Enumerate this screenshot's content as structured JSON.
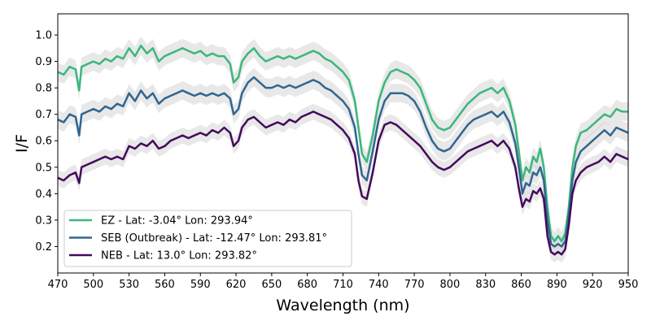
{
  "chart_data": {
    "type": "line",
    "title": "",
    "xlabel": "Wavelength (nm)",
    "ylabel": "I/F",
    "xlim": [
      470,
      950
    ],
    "ylim": [
      0.1,
      1.08
    ],
    "xticks": [
      470,
      500,
      530,
      560,
      590,
      620,
      650,
      680,
      710,
      740,
      770,
      800,
      830,
      860,
      890,
      920,
      950
    ],
    "xtick_labels": [
      "470",
      "500",
      "530",
      "560",
      "590",
      "620",
      "650",
      "680",
      "710",
      "740",
      "770",
      "800",
      "830",
      "860",
      "890",
      "920",
      "950"
    ],
    "yticks": [
      0.2,
      0.3,
      0.4,
      0.5,
      0.6,
      0.7,
      0.8,
      0.9,
      1.0
    ],
    "ytick_labels": [
      "0.2",
      "0.3",
      "0.4",
      "0.5",
      "0.6",
      "0.7",
      "0.8",
      "0.9",
      "1.0"
    ],
    "legend_position": "lower-left",
    "band_color": "#d9d9d9",
    "x": [
      470,
      475,
      480,
      485,
      488,
      490,
      495,
      500,
      505,
      510,
      515,
      520,
      525,
      530,
      535,
      540,
      545,
      550,
      555,
      560,
      565,
      570,
      575,
      580,
      585,
      590,
      595,
      600,
      605,
      610,
      615,
      618,
      622,
      625,
      630,
      635,
      640,
      645,
      650,
      655,
      660,
      665,
      670,
      675,
      680,
      685,
      690,
      695,
      700,
      705,
      710,
      715,
      720,
      723,
      726,
      730,
      735,
      740,
      745,
      750,
      755,
      760,
      765,
      770,
      775,
      780,
      785,
      790,
      795,
      800,
      805,
      810,
      815,
      820,
      825,
      830,
      835,
      840,
      845,
      850,
      855,
      858,
      861,
      864,
      867,
      870,
      873,
      876,
      879,
      882,
      885,
      888,
      891,
      894,
      897,
      900,
      903,
      906,
      910,
      915,
      920,
      925,
      930,
      935,
      940,
      945,
      950
    ],
    "series": [
      {
        "name": "EZ - Lat: -3.04° Lon: 293.94°",
        "color": "#3bb77c",
        "band": 0.035,
        "values": [
          0.86,
          0.85,
          0.88,
          0.87,
          0.79,
          0.88,
          0.89,
          0.9,
          0.89,
          0.91,
          0.9,
          0.92,
          0.91,
          0.95,
          0.92,
          0.96,
          0.93,
          0.95,
          0.9,
          0.92,
          0.93,
          0.94,
          0.95,
          0.94,
          0.93,
          0.94,
          0.92,
          0.93,
          0.92,
          0.92,
          0.89,
          0.82,
          0.84,
          0.9,
          0.93,
          0.95,
          0.92,
          0.9,
          0.91,
          0.92,
          0.91,
          0.92,
          0.91,
          0.92,
          0.93,
          0.94,
          0.93,
          0.91,
          0.9,
          0.88,
          0.86,
          0.83,
          0.75,
          0.65,
          0.55,
          0.52,
          0.62,
          0.75,
          0.82,
          0.86,
          0.87,
          0.86,
          0.85,
          0.83,
          0.8,
          0.74,
          0.68,
          0.65,
          0.64,
          0.65,
          0.68,
          0.71,
          0.74,
          0.76,
          0.78,
          0.79,
          0.8,
          0.78,
          0.8,
          0.75,
          0.66,
          0.56,
          0.45,
          0.5,
          0.48,
          0.54,
          0.52,
          0.57,
          0.5,
          0.35,
          0.24,
          0.22,
          0.24,
          0.22,
          0.25,
          0.35,
          0.5,
          0.58,
          0.63,
          0.64,
          0.66,
          0.68,
          0.7,
          0.69,
          0.72,
          0.71,
          0.71
        ]
      },
      {
        "name": "SEB (Outbreak) - Lat: -12.47° Lon: 293.81°",
        "color": "#30668f",
        "band": 0.035,
        "values": [
          0.68,
          0.67,
          0.7,
          0.69,
          0.62,
          0.7,
          0.71,
          0.72,
          0.71,
          0.73,
          0.72,
          0.74,
          0.73,
          0.78,
          0.75,
          0.79,
          0.76,
          0.78,
          0.74,
          0.76,
          0.77,
          0.78,
          0.79,
          0.78,
          0.77,
          0.78,
          0.77,
          0.78,
          0.77,
          0.78,
          0.76,
          0.7,
          0.72,
          0.78,
          0.82,
          0.84,
          0.82,
          0.8,
          0.8,
          0.81,
          0.8,
          0.81,
          0.8,
          0.81,
          0.82,
          0.83,
          0.82,
          0.8,
          0.79,
          0.77,
          0.75,
          0.72,
          0.65,
          0.55,
          0.47,
          0.45,
          0.56,
          0.68,
          0.75,
          0.78,
          0.78,
          0.78,
          0.77,
          0.75,
          0.71,
          0.65,
          0.6,
          0.57,
          0.56,
          0.57,
          0.6,
          0.63,
          0.66,
          0.68,
          0.69,
          0.7,
          0.71,
          0.69,
          0.71,
          0.67,
          0.59,
          0.5,
          0.4,
          0.44,
          0.43,
          0.48,
          0.47,
          0.5,
          0.45,
          0.3,
          0.21,
          0.2,
          0.21,
          0.2,
          0.22,
          0.32,
          0.45,
          0.52,
          0.56,
          0.58,
          0.6,
          0.62,
          0.64,
          0.62,
          0.65,
          0.64,
          0.63
        ]
      },
      {
        "name": "NEB - Lat: 13.0° Lon: 293.82°",
        "color": "#440a5c",
        "band": 0.03,
        "values": [
          0.46,
          0.45,
          0.47,
          0.48,
          0.44,
          0.5,
          0.51,
          0.52,
          0.53,
          0.54,
          0.53,
          0.54,
          0.53,
          0.58,
          0.57,
          0.59,
          0.58,
          0.6,
          0.57,
          0.58,
          0.6,
          0.61,
          0.62,
          0.61,
          0.62,
          0.63,
          0.62,
          0.64,
          0.63,
          0.65,
          0.63,
          0.58,
          0.6,
          0.65,
          0.68,
          0.69,
          0.67,
          0.65,
          0.66,
          0.67,
          0.66,
          0.68,
          0.67,
          0.69,
          0.7,
          0.71,
          0.7,
          0.69,
          0.68,
          0.66,
          0.64,
          0.61,
          0.55,
          0.45,
          0.39,
          0.38,
          0.48,
          0.6,
          0.66,
          0.67,
          0.66,
          0.64,
          0.62,
          0.6,
          0.58,
          0.55,
          0.52,
          0.5,
          0.49,
          0.5,
          0.52,
          0.54,
          0.56,
          0.57,
          0.58,
          0.59,
          0.6,
          0.58,
          0.6,
          0.57,
          0.5,
          0.42,
          0.35,
          0.38,
          0.37,
          0.41,
          0.4,
          0.42,
          0.38,
          0.24,
          0.18,
          0.17,
          0.18,
          0.17,
          0.19,
          0.28,
          0.4,
          0.45,
          0.48,
          0.5,
          0.51,
          0.52,
          0.54,
          0.52,
          0.55,
          0.54,
          0.53
        ]
      }
    ]
  }
}
